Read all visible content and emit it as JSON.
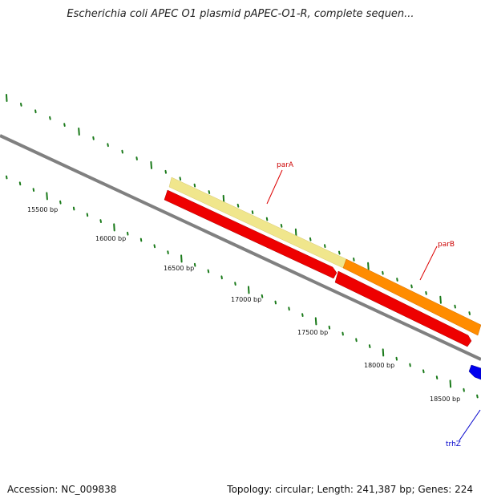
{
  "title": "Escherichia coli APEC O1 plasmid pAPEC-O1-R, complete sequen...",
  "footer": {
    "accession": "Accession: NC_009838",
    "summary": "Topology: circular; Length: 241,387 bp; Genes: 224"
  },
  "ruler_labels": [
    "15500 bp",
    "16000 bp",
    "16500 bp",
    "17000 bp",
    "17500 bp",
    "18000 bp",
    "18500 bp"
  ],
  "genes": [
    {
      "name": "parA",
      "color": "#cc0000"
    },
    {
      "name": "parB",
      "color": "#cc0000"
    },
    {
      "name": "trhZ",
      "color": "#0000cc"
    }
  ],
  "colors": {
    "backbone": "#808080",
    "tick": "#1a7a1a",
    "feature_pale": "#f0e68c",
    "feature_orange": "#ff8c00",
    "feature_red": "#ee0000",
    "feature_blue": "#0000ee"
  }
}
